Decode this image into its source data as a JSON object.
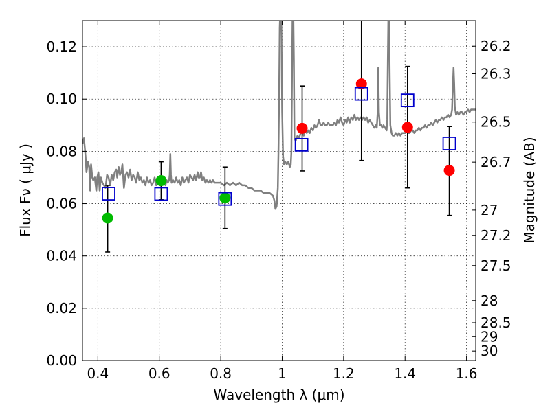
{
  "chart_data": {
    "type": "scatter",
    "title": "",
    "xlabel": "Wavelength  λ (μm)",
    "ylabel": "Flux  Fν  ( μJy )",
    "y2label": "Magnitude (AB)",
    "xlim": [
      0.35,
      1.63
    ],
    "ylim": [
      0.0,
      0.13
    ],
    "grid": true,
    "x_ticks": [
      0.4,
      0.6,
      0.8,
      1.0,
      1.2,
      1.4,
      1.6
    ],
    "x_tick_labels": [
      "0.4",
      "0.6",
      "0.8",
      "1",
      "1.2",
      "1.4",
      "1.6"
    ],
    "y_ticks": [
      0.0,
      0.02,
      0.04,
      0.06,
      0.08,
      0.1,
      0.12
    ],
    "y_tick_labels": [
      "0.00",
      "0.02",
      "0.04",
      "0.06",
      "0.08",
      "0.10",
      "0.12"
    ],
    "y2_ticks": [
      26.2,
      26.3,
      26.5,
      26.7,
      27,
      27.2,
      27.5,
      28,
      28.5,
      29,
      30
    ],
    "y2_tick_labels": [
      "26.2",
      "26.3",
      "26.5",
      "26.7",
      "27",
      "27.2",
      "27.5",
      "28",
      "28.5",
      "29",
      "30"
    ],
    "series": [
      {
        "marker": "circle",
        "color": "#00bb00",
        "points": [
          {
            "x": 0.432,
            "y": 0.0545,
            "yerr": [
              0.0415,
              0.067
            ]
          },
          {
            "x": 0.606,
            "y": 0.0688,
            "yerr": [
              0.0615,
              0.076
            ]
          },
          {
            "x": 0.814,
            "y": 0.0622,
            "yerr": [
              0.0505,
              0.074
            ]
          }
        ]
      },
      {
        "marker": "circle",
        "color": "#ff0000",
        "points": [
          {
            "x": 1.065,
            "y": 0.0888,
            "yerr": [
              0.0725,
              0.105
            ]
          },
          {
            "x": 1.258,
            "y": 0.1058,
            "yerr": [
              0.0765,
              0.135
            ]
          },
          {
            "x": 1.408,
            "y": 0.0892,
            "yerr": [
              0.066,
              0.1125
            ]
          },
          {
            "x": 1.544,
            "y": 0.0727,
            "yerr": [
              0.0555,
              0.0895
            ]
          }
        ]
      },
      {
        "marker": "open-square",
        "color": "#0000cc",
        "points": [
          {
            "x": 0.435,
            "y": 0.0638
          },
          {
            "x": 0.606,
            "y": 0.0637
          },
          {
            "x": 0.814,
            "y": 0.0618
          },
          {
            "x": 1.063,
            "y": 0.0825
          },
          {
            "x": 1.258,
            "y": 0.102
          },
          {
            "x": 1.408,
            "y": 0.0995
          },
          {
            "x": 1.544,
            "y": 0.083
          }
        ]
      }
    ],
    "model_spectrum": {
      "color": "#808080",
      "points": [
        [
          0.35,
          0.083
        ],
        [
          0.355,
          0.085
        ],
        [
          0.36,
          0.078
        ],
        [
          0.363,
          0.072
        ],
        [
          0.368,
          0.076
        ],
        [
          0.372,
          0.074
        ],
        [
          0.375,
          0.065
        ],
        [
          0.378,
          0.075
        ],
        [
          0.382,
          0.07
        ],
        [
          0.385,
          0.069
        ],
        [
          0.39,
          0.07
        ],
        [
          0.395,
          0.065
        ],
        [
          0.398,
          0.07
        ],
        [
          0.402,
          0.072
        ],
        [
          0.406,
          0.065
        ],
        [
          0.41,
          0.07
        ],
        [
          0.415,
          0.068
        ],
        [
          0.42,
          0.067
        ],
        [
          0.425,
          0.066
        ],
        [
          0.43,
          0.071
        ],
        [
          0.435,
          0.07
        ],
        [
          0.44,
          0.067
        ],
        [
          0.445,
          0.071
        ],
        [
          0.45,
          0.069
        ],
        [
          0.455,
          0.072
        ],
        [
          0.46,
          0.073
        ],
        [
          0.463,
          0.07
        ],
        [
          0.468,
          0.074
        ],
        [
          0.472,
          0.071
        ],
        [
          0.476,
          0.072
        ],
        [
          0.48,
          0.075
        ],
        [
          0.485,
          0.066
        ],
        [
          0.49,
          0.071
        ],
        [
          0.495,
          0.072
        ],
        [
          0.5,
          0.07
        ],
        [
          0.505,
          0.073
        ],
        [
          0.51,
          0.069
        ],
        [
          0.515,
          0.071
        ],
        [
          0.52,
          0.07
        ],
        [
          0.525,
          0.068
        ],
        [
          0.53,
          0.072
        ],
        [
          0.535,
          0.069
        ],
        [
          0.54,
          0.07
        ],
        [
          0.545,
          0.068
        ],
        [
          0.55,
          0.069
        ],
        [
          0.555,
          0.067
        ],
        [
          0.56,
          0.07
        ],
        [
          0.565,
          0.068
        ],
        [
          0.57,
          0.069
        ],
        [
          0.575,
          0.067
        ],
        [
          0.58,
          0.068
        ],
        [
          0.585,
          0.07
        ],
        [
          0.59,
          0.067
        ],
        [
          0.595,
          0.069
        ],
        [
          0.6,
          0.068
        ],
        [
          0.603,
          0.067
        ],
        [
          0.606,
          0.069
        ],
        [
          0.609,
          0.068
        ],
        [
          0.612,
          0.07
        ],
        [
          0.616,
          0.068
        ],
        [
          0.62,
          0.067
        ],
        [
          0.624,
          0.069
        ],
        [
          0.628,
          0.068
        ],
        [
          0.632,
          0.069
        ],
        [
          0.634,
          0.071
        ],
        [
          0.636,
          0.079
        ],
        [
          0.638,
          0.071
        ],
        [
          0.64,
          0.068
        ],
        [
          0.645,
          0.069
        ],
        [
          0.65,
          0.068
        ],
        [
          0.655,
          0.07
        ],
        [
          0.66,
          0.068
        ],
        [
          0.665,
          0.069
        ],
        [
          0.67,
          0.067
        ],
        [
          0.675,
          0.07
        ],
        [
          0.68,
          0.068
        ],
        [
          0.685,
          0.069
        ],
        [
          0.69,
          0.07
        ],
        [
          0.695,
          0.068
        ],
        [
          0.7,
          0.071
        ],
        [
          0.705,
          0.07
        ],
        [
          0.71,
          0.069
        ],
        [
          0.715,
          0.071
        ],
        [
          0.72,
          0.069
        ],
        [
          0.725,
          0.072
        ],
        [
          0.728,
          0.07
        ],
        [
          0.732,
          0.07
        ],
        [
          0.736,
          0.072
        ],
        [
          0.74,
          0.069
        ],
        [
          0.745,
          0.07
        ],
        [
          0.75,
          0.068
        ],
        [
          0.755,
          0.069
        ],
        [
          0.76,
          0.068
        ],
        [
          0.765,
          0.069
        ],
        [
          0.77,
          0.068
        ],
        [
          0.775,
          0.069
        ],
        [
          0.78,
          0.068
        ],
        [
          0.79,
          0.068
        ],
        [
          0.8,
          0.068
        ],
        [
          0.81,
          0.067
        ],
        [
          0.82,
          0.068
        ],
        [
          0.83,
          0.067
        ],
        [
          0.84,
          0.068
        ],
        [
          0.85,
          0.067
        ],
        [
          0.86,
          0.068
        ],
        [
          0.87,
          0.067
        ],
        [
          0.88,
          0.067
        ],
        [
          0.89,
          0.066
        ],
        [
          0.9,
          0.066
        ],
        [
          0.91,
          0.065
        ],
        [
          0.92,
          0.065
        ],
        [
          0.93,
          0.065
        ],
        [
          0.94,
          0.064
        ],
        [
          0.95,
          0.064
        ],
        [
          0.96,
          0.064
        ],
        [
          0.97,
          0.063
        ],
        [
          0.975,
          0.061
        ],
        [
          0.978,
          0.058
        ],
        [
          0.982,
          0.059
        ],
        [
          0.986,
          0.066
        ],
        [
          0.988,
          0.08
        ],
        [
          0.99,
          0.1
        ],
        [
          0.992,
          0.127
        ],
        [
          0.994,
          0.135
        ],
        [
          0.997,
          0.135
        ],
        [
          1.0,
          0.095
        ],
        [
          1.003,
          0.078
        ],
        [
          1.006,
          0.075
        ],
        [
          1.01,
          0.076
        ],
        [
          1.015,
          0.075
        ],
        [
          1.02,
          0.076
        ],
        [
          1.025,
          0.074
        ],
        [
          1.028,
          0.075
        ],
        [
          1.03,
          0.08
        ],
        [
          1.032,
          0.11
        ],
        [
          1.034,
          0.135
        ],
        [
          1.036,
          0.135
        ],
        [
          1.038,
          0.115
        ],
        [
          1.04,
          0.085
        ],
        [
          1.044,
          0.084
        ],
        [
          1.05,
          0.086
        ],
        [
          1.055,
          0.085
        ],
        [
          1.06,
          0.087
        ],
        [
          1.065,
          0.088
        ],
        [
          1.07,
          0.086
        ],
        [
          1.075,
          0.088
        ],
        [
          1.08,
          0.087
        ],
        [
          1.085,
          0.088
        ],
        [
          1.09,
          0.087
        ],
        [
          1.095,
          0.089
        ],
        [
          1.1,
          0.088
        ],
        [
          1.105,
          0.09
        ],
        [
          1.11,
          0.089
        ],
        [
          1.115,
          0.09
        ],
        [
          1.12,
          0.092
        ],
        [
          1.125,
          0.09
        ],
        [
          1.13,
          0.09
        ],
        [
          1.135,
          0.091
        ],
        [
          1.14,
          0.09
        ],
        [
          1.145,
          0.09
        ],
        [
          1.15,
          0.091
        ],
        [
          1.155,
          0.09
        ],
        [
          1.16,
          0.09
        ],
        [
          1.165,
          0.09
        ],
        [
          1.17,
          0.091
        ],
        [
          1.175,
          0.09
        ],
        [
          1.18,
          0.092
        ],
        [
          1.185,
          0.091
        ],
        [
          1.19,
          0.093
        ],
        [
          1.195,
          0.091
        ],
        [
          1.2,
          0.09
        ],
        [
          1.205,
          0.092
        ],
        [
          1.21,
          0.091
        ],
        [
          1.215,
          0.093
        ],
        [
          1.22,
          0.091
        ],
        [
          1.225,
          0.093
        ],
        [
          1.23,
          0.092
        ],
        [
          1.235,
          0.094
        ],
        [
          1.24,
          0.092
        ],
        [
          1.245,
          0.093
        ],
        [
          1.25,
          0.092
        ],
        [
          1.255,
          0.093
        ],
        [
          1.26,
          0.092
        ],
        [
          1.265,
          0.093
        ],
        [
          1.27,
          0.092
        ],
        [
          1.275,
          0.093
        ],
        [
          1.28,
          0.091
        ],
        [
          1.285,
          0.092
        ],
        [
          1.29,
          0.091
        ],
        [
          1.295,
          0.09
        ],
        [
          1.3,
          0.089
        ],
        [
          1.305,
          0.09
        ],
        [
          1.308,
          0.089
        ],
        [
          1.311,
          0.095
        ],
        [
          1.313,
          0.112
        ],
        [
          1.315,
          0.095
        ],
        [
          1.318,
          0.09
        ],
        [
          1.322,
          0.09
        ],
        [
          1.326,
          0.089
        ],
        [
          1.33,
          0.09
        ],
        [
          1.335,
          0.089
        ],
        [
          1.34,
          0.088
        ],
        [
          1.342,
          0.092
        ],
        [
          1.344,
          0.115
        ],
        [
          1.346,
          0.135
        ],
        [
          1.348,
          0.135
        ],
        [
          1.35,
          0.11
        ],
        [
          1.352,
          0.09
        ],
        [
          1.356,
          0.087
        ],
        [
          1.36,
          0.086
        ],
        [
          1.365,
          0.086
        ],
        [
          1.37,
          0.087
        ],
        [
          1.375,
          0.086
        ],
        [
          1.38,
          0.087
        ],
        [
          1.385,
          0.086
        ],
        [
          1.39,
          0.087
        ],
        [
          1.395,
          0.087
        ],
        [
          1.4,
          0.087
        ],
        [
          1.405,
          0.088
        ],
        [
          1.41,
          0.087
        ],
        [
          1.415,
          0.087
        ],
        [
          1.42,
          0.088
        ],
        [
          1.425,
          0.088
        ],
        [
          1.43,
          0.087
        ],
        [
          1.435,
          0.088
        ],
        [
          1.44,
          0.088
        ],
        [
          1.445,
          0.089
        ],
        [
          1.45,
          0.088
        ],
        [
          1.455,
          0.089
        ],
        [
          1.46,
          0.089
        ],
        [
          1.465,
          0.09
        ],
        [
          1.47,
          0.089
        ],
        [
          1.475,
          0.09
        ],
        [
          1.48,
          0.09
        ],
        [
          1.485,
          0.091
        ],
        [
          1.49,
          0.09
        ],
        [
          1.495,
          0.091
        ],
        [
          1.5,
          0.092
        ],
        [
          1.505,
          0.091
        ],
        [
          1.51,
          0.092
        ],
        [
          1.515,
          0.092
        ],
        [
          1.52,
          0.093
        ],
        [
          1.525,
          0.092
        ],
        [
          1.53,
          0.093
        ],
        [
          1.535,
          0.093
        ],
        [
          1.54,
          0.094
        ],
        [
          1.545,
          0.093
        ],
        [
          1.55,
          0.094
        ],
        [
          1.553,
          0.096
        ],
        [
          1.556,
          0.106
        ],
        [
          1.558,
          0.112
        ],
        [
          1.56,
          0.106
        ],
        [
          1.562,
          0.097
        ],
        [
          1.566,
          0.094
        ],
        [
          1.57,
          0.095
        ],
        [
          1.575,
          0.094
        ],
        [
          1.58,
          0.095
        ],
        [
          1.585,
          0.095
        ],
        [
          1.59,
          0.094
        ],
        [
          1.595,
          0.095
        ],
        [
          1.6,
          0.095
        ],
        [
          1.605,
          0.096
        ],
        [
          1.61,
          0.095
        ],
        [
          1.615,
          0.096
        ],
        [
          1.62,
          0.096
        ],
        [
          1.63,
          0.096
        ]
      ]
    }
  }
}
